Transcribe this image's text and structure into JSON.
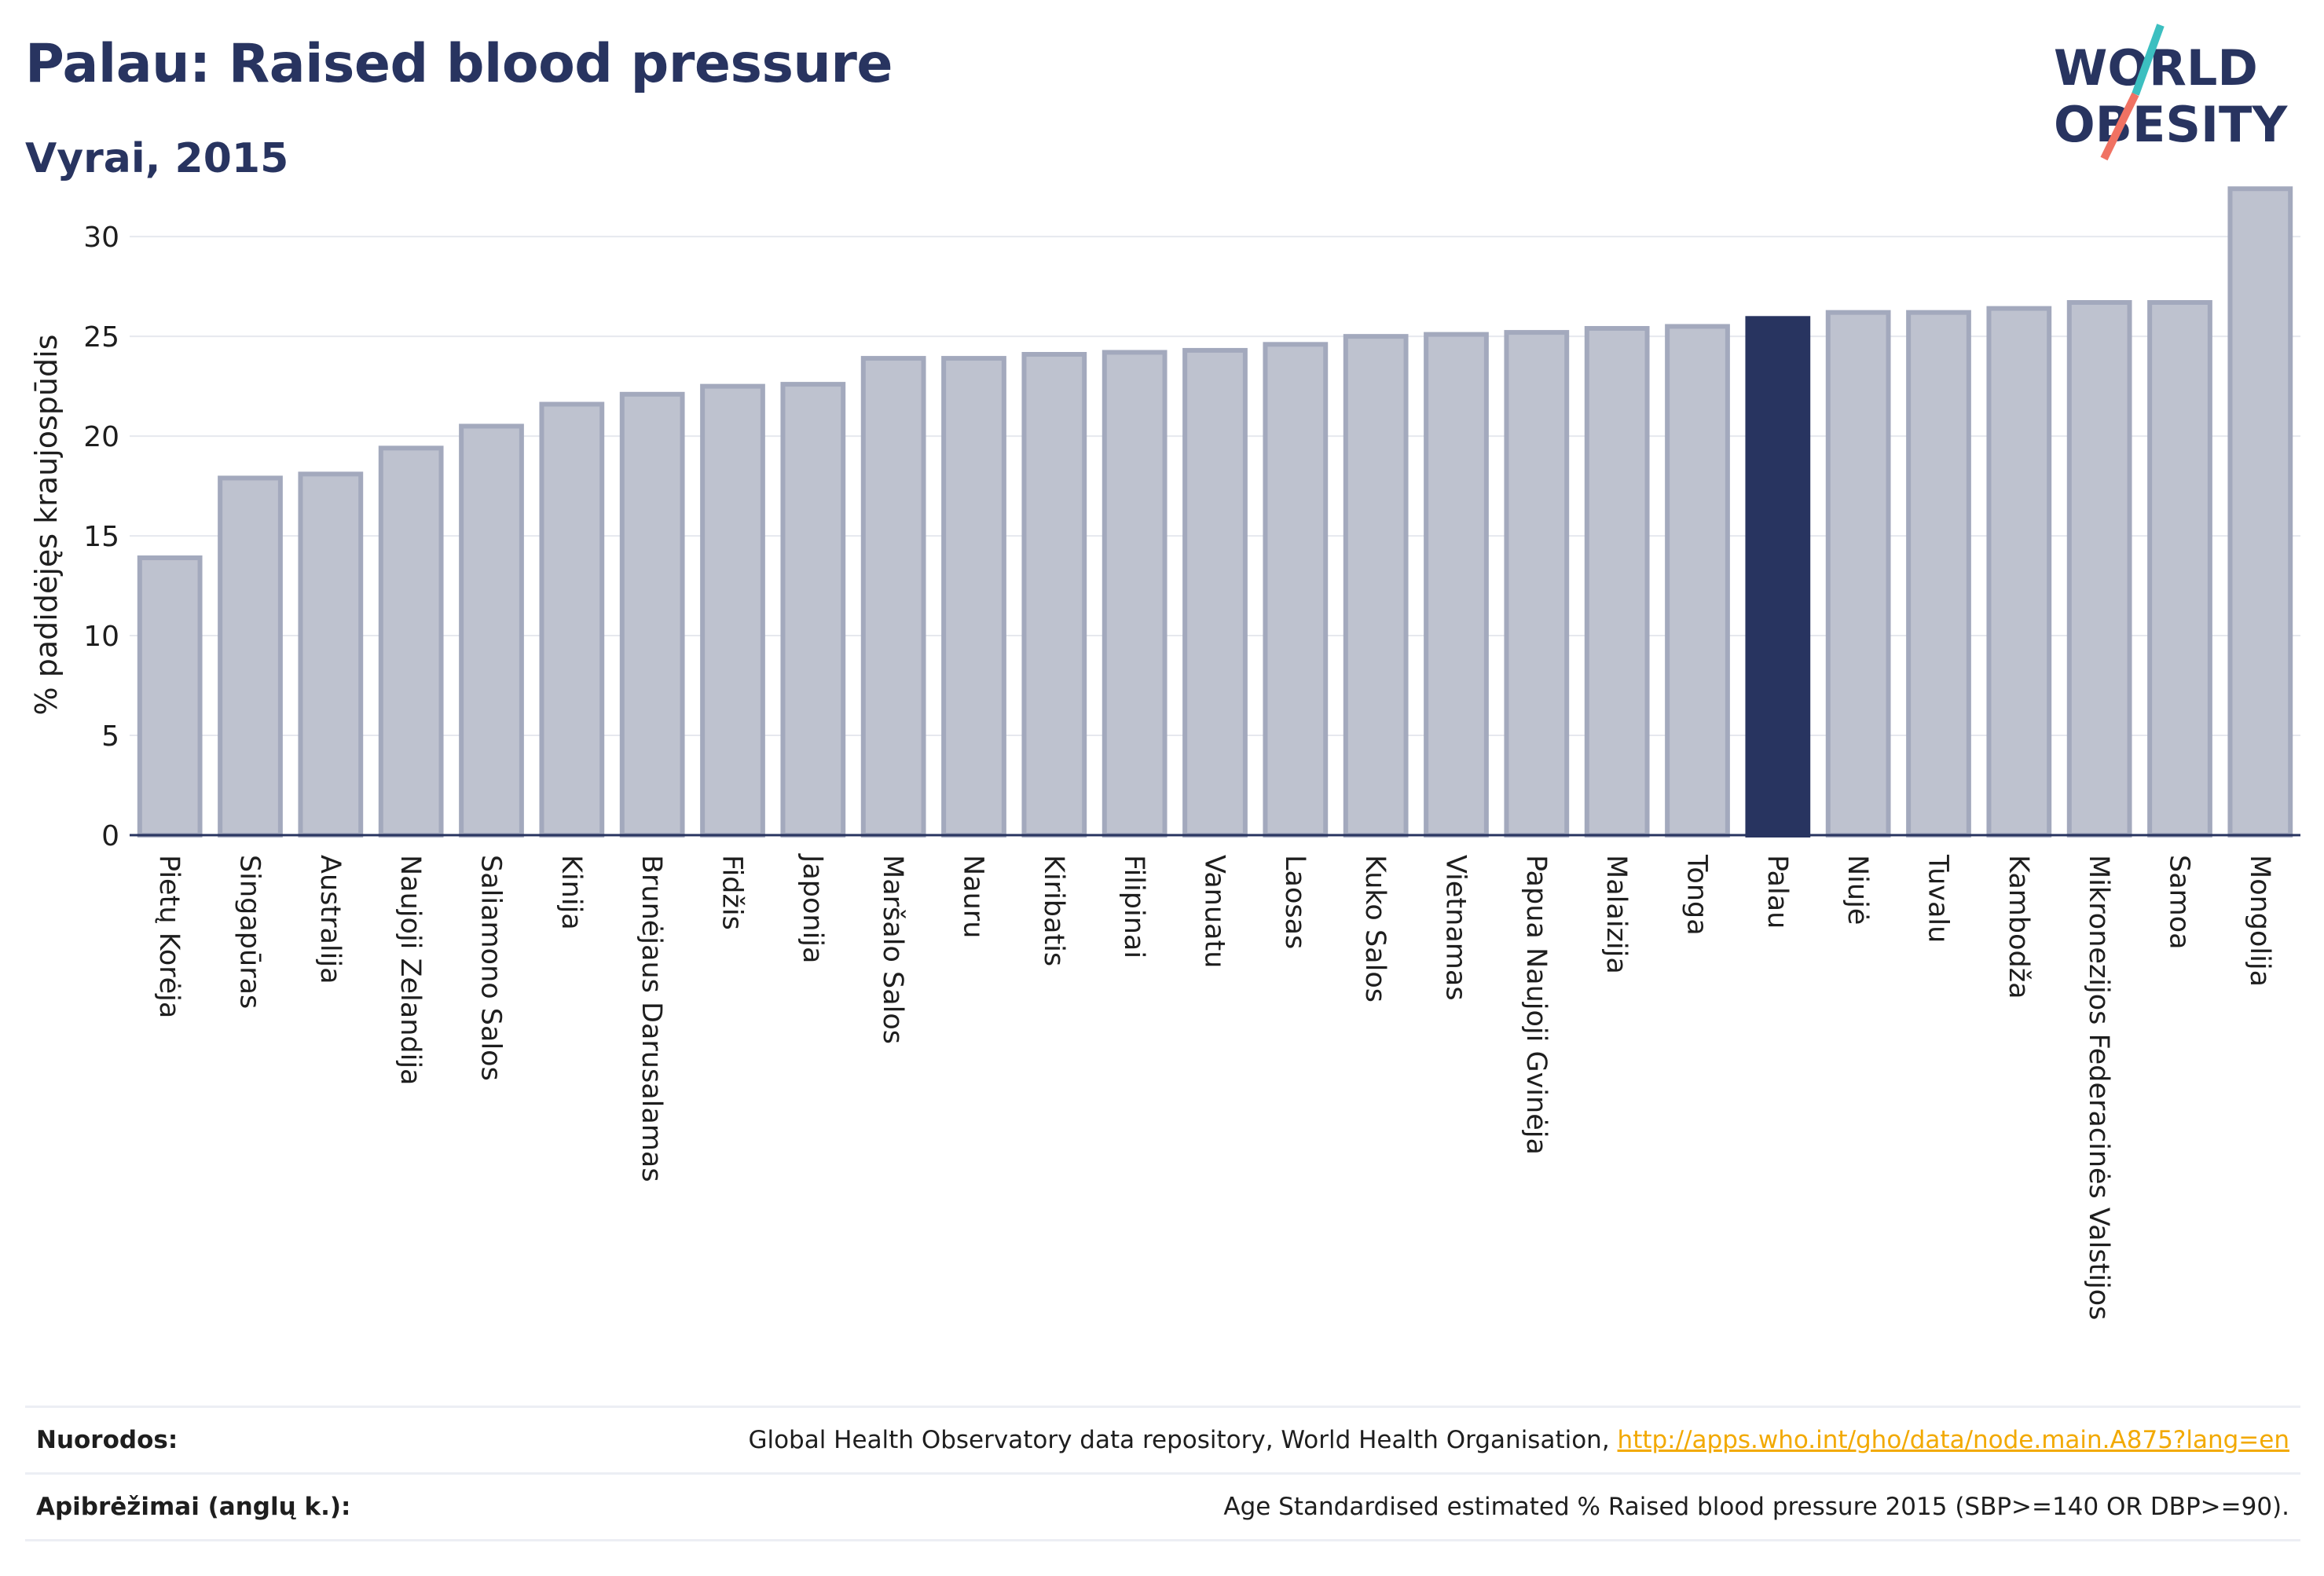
{
  "header": {
    "title": "Palau: Raised blood pressure",
    "subtitle": "Vyrai, 2015"
  },
  "logo": {
    "line1": "WORLD",
    "line2": "OBESITY",
    "accent_teal": "#3cbfc0",
    "accent_coral": "#f07263"
  },
  "chart_data": {
    "type": "bar",
    "ylabel": "% padidėjęs kraujospūdis",
    "xlabel": "",
    "ylim": [
      0,
      33
    ],
    "yticks": [
      0,
      5,
      10,
      15,
      20,
      25,
      30
    ],
    "grid": true,
    "highlight": "Palau",
    "colors": {
      "bar": "#bec2cf",
      "bar_edge": "#a3a9bd",
      "highlight": "#283460"
    },
    "categories": [
      "Pietų Korėja",
      "Singapūras",
      "Australija",
      "Naujoji Zelandija",
      "Saliamono Salos",
      "Kinija",
      "Brunėjaus Darusalamas",
      "Fidžis",
      "Japonija",
      "Maršalo Salos",
      "Nauru",
      "Kiribatis",
      "Filipinai",
      "Vanuatu",
      "Laosas",
      "Kuko Salos",
      "Vietnamas",
      "Papua Naujoji Gvinėja",
      "Malaizija",
      "Tonga",
      "Palau",
      "Niujė",
      "Tuvalu",
      "Kambodža",
      "Mikronezijos Federacinės Valstijos",
      "Samoa",
      "Mongolija"
    ],
    "values": [
      13.9,
      17.9,
      18.1,
      19.4,
      20.5,
      21.6,
      22.1,
      22.5,
      22.6,
      23.9,
      23.9,
      24.1,
      24.2,
      24.3,
      24.6,
      25.0,
      25.1,
      25.2,
      25.4,
      25.5,
      25.9,
      26.2,
      26.2,
      26.4,
      26.7,
      26.7,
      32.4
    ]
  },
  "footer": {
    "sources_label": "Nuorodos:",
    "sources_text": "Global Health Observatory data repository, World Health Organisation, ",
    "sources_link": "http://apps.who.int/gho/data/node.main.A875?lang=en",
    "definitions_label": "Apibrėžimai (anglų k.):",
    "definitions_text": "Age Standardised estimated % Raised blood pressure 2015 (SBP>=140 OR DBP>=90)."
  }
}
